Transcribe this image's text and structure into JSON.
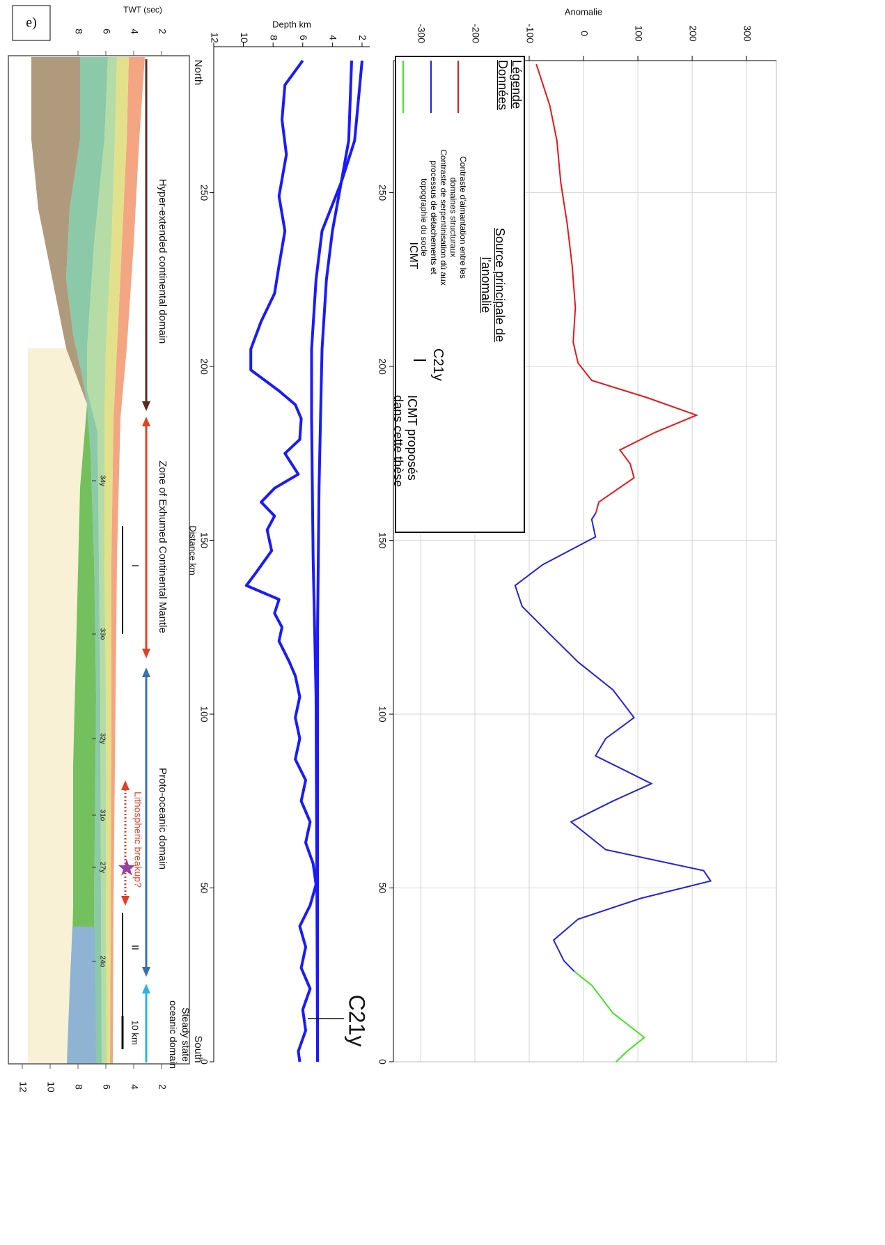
{
  "chart_data": [
    {
      "type": "line",
      "ylabel": "Anomalie",
      "xlim": [
        0,
        288
      ],
      "xticks": [
        0,
        50,
        100,
        150,
        200,
        250
      ],
      "ylim": [
        -350,
        355
      ],
      "yticks": [
        -300,
        -200,
        -100,
        0,
        100,
        200,
        300
      ],
      "grid": true,
      "legend": {
        "title": "Légende",
        "subtitle": "Données",
        "header": "Source principale de l'anomalie"
      },
      "series": [
        {
          "name": "Contraste d'aimantation entre les domaines structuraux",
          "color": "#e8161b",
          "x": [
            287,
            275,
            265,
            253,
            241,
            229,
            217,
            207,
            201,
            196,
            191,
            186,
            181,
            176,
            172,
            168,
            161,
            158
          ],
          "values": [
            -87,
            -62,
            -49,
            -42,
            -30,
            -21,
            -15,
            -19,
            -10,
            15,
            118,
            208,
            131,
            67,
            86,
            93,
            28,
            23
          ]
        },
        {
          "name": "Contraste de serpentinisation dû aux processus de détachements et topographie du socle",
          "color": "#2121e0",
          "x": [
            158,
            156,
            151,
            143,
            137,
            131,
            123,
            115,
            107,
            99,
            93,
            88,
            80,
            75,
            69,
            61,
            55,
            52,
            47,
            41,
            35,
            29,
            26
          ],
          "values": [
            23,
            15,
            22,
            -75,
            -126,
            -113,
            -62,
            -10,
            54,
            93,
            41,
            22,
            125,
            54,
            -23,
            41,
            221,
            234,
            105,
            -10,
            -55,
            -36,
            -17
          ]
        },
        {
          "name": "ICMT",
          "color": "#3ee61e",
          "x": [
            26,
            22,
            14,
            7,
            3,
            0
          ],
          "values": [
            -17,
            15,
            54,
            112,
            80,
            60
          ]
        }
      ],
      "marker_label": "C21y",
      "marker_text": "ICMT proposés dans cette thèse"
    },
    {
      "type": "line",
      "ylabel": "Depth km",
      "xlabel": "Distance km",
      "xlim": [
        0,
        292
      ],
      "xticks": [
        0,
        50,
        100,
        150,
        200,
        250
      ],
      "ylim": [
        12,
        1.5
      ],
      "yticks": [
        2,
        4,
        6,
        8,
        10,
        12
      ],
      "annotation": "C21y",
      "series": [
        {
          "color": "#1a1aff",
          "x": [
            288,
            265,
            253,
            239,
            225,
            205,
            185,
            145,
            105,
            0
          ],
          "values": [
            2,
            2.5,
            3.4,
            4.7,
            5.1,
            5.4,
            5.4,
            5.3,
            5.1,
            5.0
          ]
        },
        {
          "color": "#1a1aff",
          "x": [
            288,
            265,
            253,
            239,
            225,
            205,
            185,
            165,
            125,
            0
          ],
          "values": [
            2.7,
            2.9,
            3.4,
            4.0,
            4.4,
            4.7,
            4.8,
            4.9,
            5.0,
            5.0
          ]
        },
        {
          "color": "#1a1aff",
          "x": [
            288,
            281,
            271,
            261,
            249,
            239,
            229,
            221,
            213,
            205,
            199,
            193,
            189,
            185,
            179,
            175,
            169,
            165,
            161,
            157,
            153,
            147,
            141,
            137,
            133,
            129,
            125,
            121,
            115,
            111,
            105,
            99,
            93,
            87,
            81,
            75,
            69,
            63,
            57,
            51,
            45,
            39,
            33,
            27,
            21,
            15,
            9,
            3,
            0
          ],
          "values": [
            6.0,
            7.2,
            7.4,
            7.1,
            7.6,
            7.2,
            7.6,
            7.9,
            8.8,
            9.5,
            9.5,
            7.6,
            6.5,
            6.1,
            6.2,
            7.2,
            6.3,
            7.9,
            8.8,
            7.9,
            8.4,
            8.1,
            9.1,
            9.8,
            7.6,
            7.9,
            7.4,
            7.6,
            6.9,
            6.5,
            6.2,
            6.5,
            6.2,
            6.5,
            5.8,
            6.1,
            5.5,
            5.8,
            5.3,
            5.1,
            5.5,
            6.2,
            5.8,
            6.1,
            5.5,
            6.0,
            5.8,
            6.3,
            6.2
          ]
        }
      ]
    },
    {
      "type": "section",
      "panel_label": "e)",
      "ylabel": "TWT (sec)",
      "ylim": [
        0,
        13
      ],
      "yticks": [
        2,
        4,
        6,
        8,
        10,
        12
      ],
      "ends": {
        "north": "North",
        "south": "South"
      },
      "domains": [
        {
          "label": "Hyper-extended continental domain",
          "color": "#5b2a1f"
        },
        {
          "label": "Zone of Exhumed Continental Mantle",
          "color": "#e0412a"
        },
        {
          "label": "Proto-oceanic domain",
          "color": "#3a6fb0"
        },
        {
          "label": "Steady state oceanic domain",
          "color": "#2bb5e0"
        }
      ],
      "breakup": {
        "label": "Lithospheric breakup?",
        "color": "#e0412a"
      },
      "anomalies": [
        "34y",
        "33o",
        "32y",
        "31o",
        "27y",
        "24o"
      ],
      "segments": [
        "I",
        "II"
      ],
      "scale": "10 km"
    }
  ]
}
